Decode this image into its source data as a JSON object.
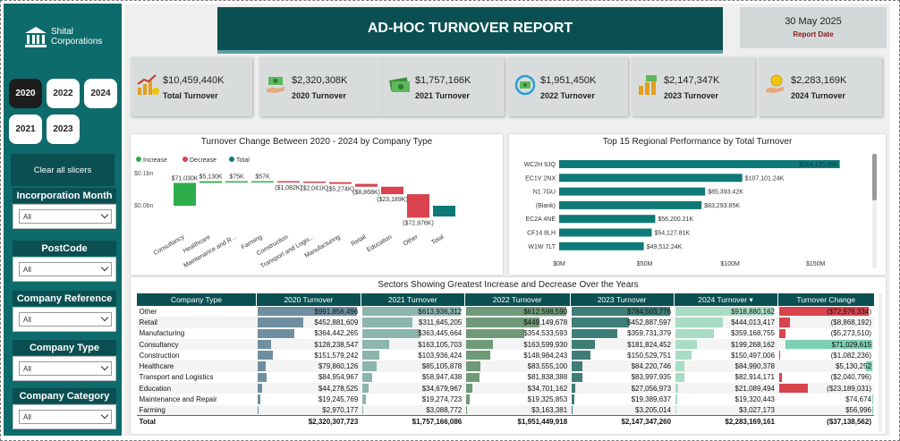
{
  "brand": {
    "name_line1": "Shital",
    "name_line2": "Corporations"
  },
  "report": {
    "title": "AD-HOC TURNOVER REPORT",
    "date": "30 May 2025",
    "date_label": "Report Date"
  },
  "year_buttons": [
    {
      "label": "2020",
      "selected": true
    },
    {
      "label": "2022",
      "selected": false
    },
    {
      "label": "2024",
      "selected": false
    },
    {
      "label": "2021",
      "selected": false
    },
    {
      "label": "2023",
      "selected": false
    }
  ],
  "clear_label": "Clear all slicers",
  "slicers": [
    {
      "title": "Incorporation Month",
      "value": "All"
    },
    {
      "title": "PostCode",
      "value": "All"
    },
    {
      "title": "Company Reference",
      "value": "All"
    },
    {
      "title": "Company Type",
      "value": "All"
    },
    {
      "title": "Company Category",
      "value": "All"
    }
  ],
  "kpis": [
    {
      "value": "$10,459,440K",
      "label": "Total Turnover",
      "icon": "chart-coins-icon"
    },
    {
      "value": "$2,320,308K",
      "label": "2020 Turnover",
      "icon": "hand-money-icon"
    },
    {
      "value": "$1,757,166K",
      "label": "2021 Turnover",
      "icon": "cash-stack-icon"
    },
    {
      "value": "$1,951,450K",
      "label": "2022 Turnover",
      "icon": "money-cycle-icon"
    },
    {
      "value": "$2,147,347K",
      "label": "2023 Turnover",
      "icon": "money-growth-icon"
    },
    {
      "value": "$2,283,169K",
      "label": "2024 Turnover",
      "icon": "coin-hand-icon"
    }
  ],
  "colors": {
    "increase": "#2eae4a",
    "decrease": "#d8434e",
    "total": "#0e7a78",
    "teal_dark": "#0b4f52"
  },
  "waterfall": {
    "title": "Turnover Change Between 2020 - 2024 by Company Type",
    "legend": [
      "Increase",
      "Decrease",
      "Total"
    ],
    "y_ticks": [
      "$0.1bn",
      "$0.0bn"
    ],
    "chart_data": {
      "type": "waterfall",
      "categories": [
        "Consultancy",
        "Healthcare",
        "Maintenance and R...",
        "Farming",
        "Construction",
        "Transport and Logis...",
        "Manufacturing",
        "Retail",
        "Education",
        "Other",
        "Total"
      ],
      "values": [
        71030,
        5130,
        75,
        57,
        -1082,
        -2041,
        -5274,
        -8868,
        -23189,
        -72976,
        -37138
      ],
      "labels": [
        "$71,030K",
        "$5,130K",
        "$75K",
        "$57K",
        "($1,082K)",
        "($2,041K)",
        "($5,274K)",
        "($8,868K)",
        "($23,189K)",
        "($72,976K)",
        ""
      ],
      "unit": "K"
    }
  },
  "top15": {
    "title": "Top 15 Regional Performance by Total Turnover",
    "x_ticks": [
      "$0M",
      "$50M",
      "$100M",
      "$150M"
    ],
    "chart_data": {
      "type": "bar",
      "orientation": "horizontal",
      "categories": [
        "WC2H 9JQ",
        "EC1V 2NX",
        "N1 7GU",
        "(Blank)",
        "EC2A 4NE",
        "CF14 8LH",
        "W1W 7LT"
      ],
      "values": [
        164135.05,
        107101.24,
        85393.42,
        83293.85,
        56200.21,
        54127.81,
        49512.24
      ],
      "labels": [
        "$164,135.05K",
        "$107,101.24K",
        "$85,393.42K",
        "$83,293.85K",
        "$56,200.21K",
        "$54,127.81K",
        "$49,512.24K"
      ],
      "xlim": [
        0,
        180000
      ]
    }
  },
  "sectors": {
    "title": "Sectors Showing Greatest Increase and Decrease Over the Years",
    "columns": [
      "Company Type",
      "2020 Turnover",
      "2021 Turnover",
      "2022 Turnover",
      "2023 Turnover",
      "2024 Turnover",
      "Turnover Change"
    ],
    "rows": [
      {
        "type": "Other",
        "v": [
          "$991,856,496",
          "$613,936,312",
          "$612,598,590",
          "$784,503,776",
          "$918,880,162",
          "($72,976,334)"
        ],
        "n": [
          991.86,
          613.94,
          612.6,
          784.5,
          918.88,
          -72.98
        ]
      },
      {
        "type": "Retail",
        "v": [
          "$452,881,609",
          "$311,645,205",
          "$449,149,678",
          "$452,887,597",
          "$444,013,417",
          "($8,868,192)"
        ],
        "n": [
          452.88,
          311.65,
          449.15,
          452.89,
          444.01,
          -8.87
        ]
      },
      {
        "type": "Manufacturing",
        "v": [
          "$364,442,265",
          "$363,445,664",
          "$354,533,593",
          "$359,731,379",
          "$359,168,755",
          "($5,273,510)"
        ],
        "n": [
          364.44,
          363.45,
          354.53,
          359.73,
          359.17,
          -5.27
        ]
      },
      {
        "type": "Consultancy",
        "v": [
          "$128,238,547",
          "$163,105,703",
          "$163,599,930",
          "$181,824,452",
          "$199,268,162",
          "$71,029,615"
        ],
        "n": [
          128.24,
          163.11,
          163.6,
          181.82,
          199.27,
          71.03
        ]
      },
      {
        "type": "Construction",
        "v": [
          "$151,579,242",
          "$103,936,424",
          "$148,984,243",
          "$150,529,751",
          "$150,497,006",
          "($1,082,236)"
        ],
        "n": [
          151.58,
          103.94,
          148.98,
          150.53,
          150.5,
          -1.08
        ]
      },
      {
        "type": "Healthcare",
        "v": [
          "$79,860,126",
          "$85,105,878",
          "$83,555,100",
          "$84,220,746",
          "$84,990,378",
          "$5,130,252"
        ],
        "n": [
          79.86,
          85.11,
          83.56,
          84.22,
          84.99,
          5.13
        ]
      },
      {
        "type": "Transport and Logistics",
        "v": [
          "$84,954,967",
          "$58,947,438",
          "$81,838,388",
          "$83,997,935",
          "$82,914,171",
          "($2,040,796)"
        ],
        "n": [
          84.95,
          58.95,
          81.84,
          84.0,
          82.91,
          -2.04
        ]
      },
      {
        "type": "Education",
        "v": [
          "$44,278,525",
          "$34,679,967",
          "$34,701,162",
          "$27,056,973",
          "$21,089,494",
          "($23,189,031)"
        ],
        "n": [
          44.28,
          34.68,
          34.7,
          27.06,
          21.09,
          -23.19
        ]
      },
      {
        "type": "Maintenance and Repair",
        "v": [
          "$19,245,769",
          "$19,274,723",
          "$19,325,853",
          "$19,389,637",
          "$19,320,443",
          "$74,674"
        ],
        "n": [
          19.25,
          19.27,
          19.33,
          19.39,
          19.32,
          0.07
        ]
      },
      {
        "type": "Farming",
        "v": [
          "$2,970,177",
          "$3,088,772",
          "$3,163,381",
          "$3,205,014",
          "$3,027,173",
          "$56,996"
        ],
        "n": [
          2.97,
          3.09,
          3.16,
          3.21,
          3.03,
          0.06
        ]
      }
    ],
    "total": {
      "type": "Total",
      "v": [
        "$2,320,307,723",
        "$1,757,166,086",
        "$1,951,449,918",
        "$2,147,347,260",
        "$2,283,169,161",
        "($37,138,562)"
      ]
    },
    "bar_colors": [
      "#6f8fa0",
      "#8cb5ad",
      "#6f9a78",
      "#3f7d78",
      "#a8dcc4"
    ]
  }
}
